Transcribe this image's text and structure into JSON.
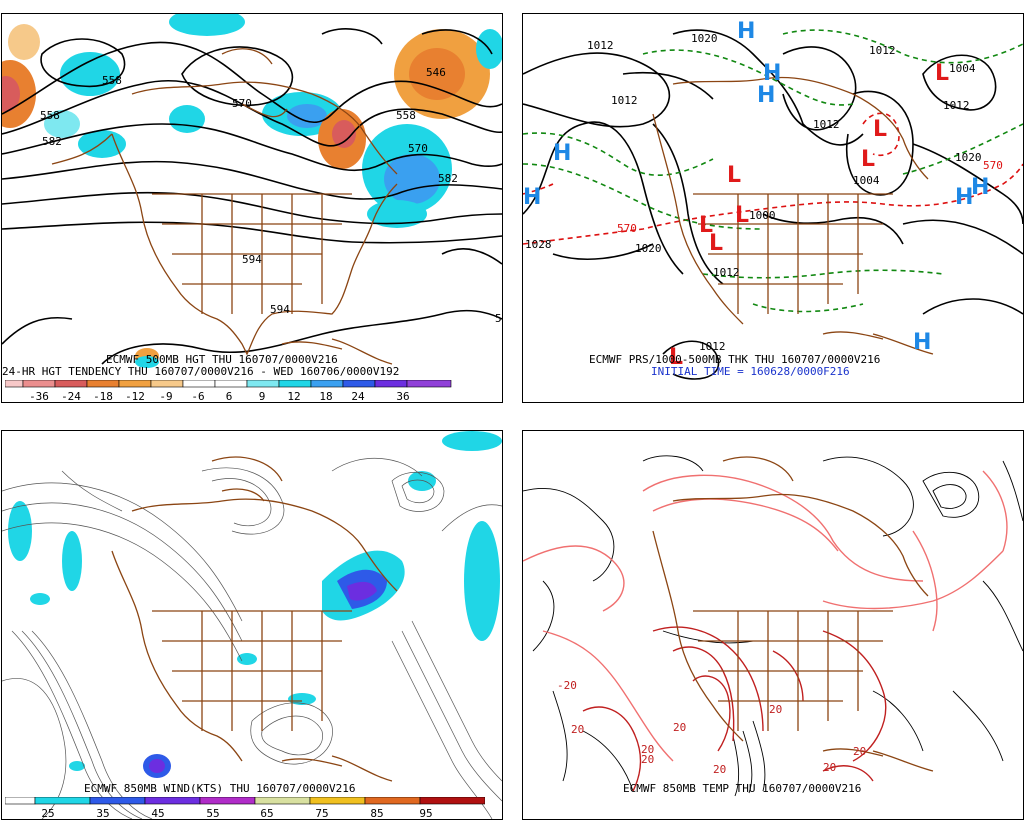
{
  "panel1": {
    "title": "ECMWF 500MB HGT THU 160707/0000V216",
    "subtitle": "24-HR HGT TENDENCY THU 160707/0000V216 - WED 160706/0000V192",
    "contour_labels": [
      "558",
      "570",
      "558",
      "582",
      "546",
      "558",
      "570",
      "582",
      "594",
      "594",
      "5"
    ],
    "colorbar": {
      "ticks": [
        "-36",
        "-24",
        "-18",
        "-12",
        "-9",
        "-6",
        "6",
        "9",
        "12",
        "18",
        "24",
        "36"
      ],
      "colors": [
        "#f7c8c8",
        "#eb8e8e",
        "#d85c5c",
        "#e88030",
        "#f0a040",
        "#f6c98a",
        "#ffffff",
        "#ffffff",
        "#7ee8f0",
        "#20d6e6",
        "#3aa0f0",
        "#2e5ae8",
        "#6c2ee0",
        "#9040d8"
      ]
    }
  },
  "panel2": {
    "title": "ECMWF PRS/1000-500MB THK THU 160707/0000V216",
    "initial_time": "INITIAL TIME = 160628/0000F216",
    "isobar_labels": [
      "1012",
      "1020",
      "1012",
      "1012",
      "1004",
      "1012",
      "1012",
      "1020",
      "1004",
      "1000",
      "1028",
      "1020",
      "1012",
      "1012",
      "570",
      "570"
    ],
    "highs": [
      "H",
      "H",
      "H",
      "H",
      "H",
      "H",
      "H",
      "H"
    ],
    "lows": [
      "L",
      "L",
      "L",
      "L",
      "L",
      "L",
      "L",
      "L"
    ]
  },
  "panel3": {
    "title": "ECMWF 850MB WIND(KTS) THU 160707/0000V216",
    "colorbar": {
      "ticks": [
        "25",
        "35",
        "45",
        "55",
        "65",
        "75",
        "85",
        "95"
      ],
      "colors": [
        "#ffffff",
        "#20d6e6",
        "#2e5ae8",
        "#6c2ee0",
        "#b02cc8",
        "#d8e0a0",
        "#f0c020",
        "#e06820",
        "#b01010"
      ]
    }
  },
  "panel4": {
    "title": "ECMWF 850MB TEMP THU 160707/0000V216",
    "temp_labels": [
      "-20",
      "20",
      "20",
      "20",
      "20",
      "20",
      "20",
      "20",
      "20"
    ]
  },
  "colors": {
    "geography": "#8b4513",
    "contour": "#000000",
    "thickness_warm": "#dd1111",
    "thickness_cool": "#118811",
    "high_marker": "#1e88e5",
    "low_marker": "#e01a1a"
  }
}
